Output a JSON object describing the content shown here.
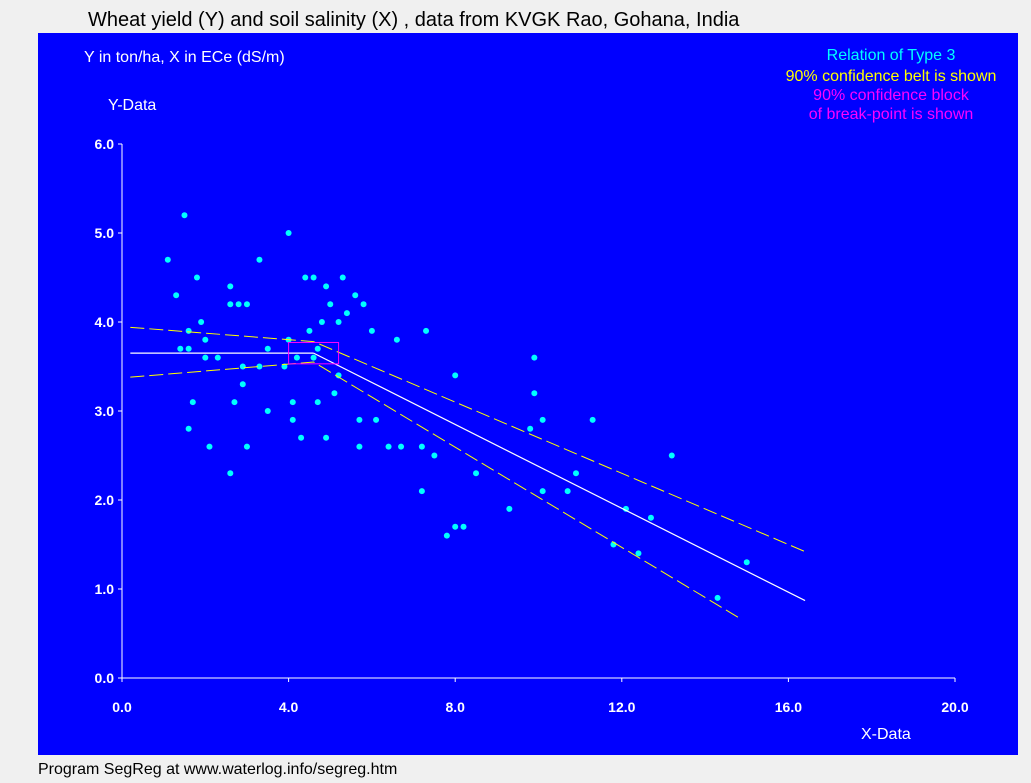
{
  "window": {
    "title": "Wheat yield (Y) and soil salinity (X) , data from KVGK Rao, Gohana, India",
    "footer": "Program SegReg at www.waterlog.info/segreg.htm"
  },
  "colors": {
    "background": "#0000ff",
    "points": "#00ffff",
    "regression_line": "#ffffff",
    "confidence_belt": "#ffff00",
    "breakpoint_block": "#ff00ff",
    "axes": "#ffffff"
  },
  "chart_data": {
    "type": "scatter",
    "title": "Wheat yield (Y) and soil salinity (X) , data from KVGK Rao, Gohana, India",
    "units_note": "Y in ton/ha, X in ECe (dS/m)",
    "xlabel": "X-Data",
    "ylabel": "Y-Data",
    "xlim": [
      0,
      20
    ],
    "ylim": [
      0,
      6
    ],
    "x_ticks": [
      "0.0",
      "4.0",
      "8.0",
      "12.0",
      "16.0",
      "20.0"
    ],
    "y_ticks": [
      "0.0",
      "1.0",
      "2.0",
      "3.0",
      "4.0",
      "5.0",
      "6.0"
    ],
    "x_tick_values": [
      0,
      4,
      8,
      12,
      16,
      20
    ],
    "y_tick_values": [
      0,
      1,
      2,
      3,
      4,
      5,
      6
    ],
    "annotations": [
      "Relation of Type 3",
      "90% confidence belt is shown",
      "90% confidence block",
      "of break-point is shown"
    ],
    "points": [
      [
        1.1,
        4.7
      ],
      [
        1.3,
        4.3
      ],
      [
        1.5,
        5.2
      ],
      [
        1.4,
        3.7
      ],
      [
        1.6,
        3.9
      ],
      [
        1.6,
        3.7
      ],
      [
        1.7,
        3.1
      ],
      [
        1.6,
        2.8
      ],
      [
        1.8,
        4.5
      ],
      [
        1.9,
        4.0
      ],
      [
        2.0,
        3.8
      ],
      [
        2.0,
        3.6
      ],
      [
        2.1,
        2.6
      ],
      [
        2.3,
        3.6
      ],
      [
        2.6,
        4.4
      ],
      [
        2.6,
        4.2
      ],
      [
        2.8,
        4.2
      ],
      [
        2.7,
        3.1
      ],
      [
        2.6,
        2.3
      ],
      [
        2.9,
        3.5
      ],
      [
        2.9,
        3.3
      ],
      [
        3.0,
        4.2
      ],
      [
        3.0,
        2.6
      ],
      [
        3.3,
        3.5
      ],
      [
        3.3,
        4.7
      ],
      [
        3.5,
        3.7
      ],
      [
        3.5,
        3.0
      ],
      [
        3.9,
        3.5
      ],
      [
        4.0,
        5.0
      ],
      [
        4.0,
        3.8
      ],
      [
        4.1,
        3.1
      ],
      [
        4.1,
        2.9
      ],
      [
        4.2,
        3.6
      ],
      [
        4.3,
        2.7
      ],
      [
        4.4,
        4.5
      ],
      [
        4.5,
        3.9
      ],
      [
        4.6,
        4.5
      ],
      [
        4.6,
        3.6
      ],
      [
        4.7,
        3.7
      ],
      [
        4.7,
        3.1
      ],
      [
        4.8,
        4.0
      ],
      [
        4.9,
        4.4
      ],
      [
        4.9,
        2.7
      ],
      [
        5.0,
        4.2
      ],
      [
        5.1,
        3.2
      ],
      [
        5.2,
        3.4
      ],
      [
        5.2,
        4.0
      ],
      [
        5.3,
        4.5
      ],
      [
        5.4,
        4.1
      ],
      [
        5.6,
        4.3
      ],
      [
        5.7,
        2.6
      ],
      [
        5.7,
        2.9
      ],
      [
        5.8,
        4.2
      ],
      [
        6.0,
        3.9
      ],
      [
        6.1,
        2.9
      ],
      [
        6.4,
        2.6
      ],
      [
        6.6,
        3.8
      ],
      [
        6.7,
        2.6
      ],
      [
        7.2,
        2.6
      ],
      [
        7.2,
        2.1
      ],
      [
        7.3,
        3.9
      ],
      [
        7.5,
        2.5
      ],
      [
        7.8,
        1.6
      ],
      [
        8.0,
        3.4
      ],
      [
        8.0,
        1.7
      ],
      [
        8.2,
        1.7
      ],
      [
        8.5,
        2.3
      ],
      [
        9.3,
        1.9
      ],
      [
        9.8,
        2.8
      ],
      [
        9.9,
        3.6
      ],
      [
        9.9,
        3.2
      ],
      [
        10.1,
        2.1
      ],
      [
        10.1,
        2.9
      ],
      [
        10.7,
        2.1
      ],
      [
        10.9,
        2.3
      ],
      [
        11.3,
        2.9
      ],
      [
        11.8,
        1.5
      ],
      [
        12.1,
        1.9
      ],
      [
        12.4,
        1.4
      ],
      [
        12.7,
        1.8
      ],
      [
        13.2,
        2.5
      ],
      [
        14.3,
        0.9
      ],
      [
        15.0,
        1.3
      ]
    ],
    "regression": {
      "breakpoint_x": 4.6,
      "plateau_y": 3.65,
      "end_x": 16.4,
      "end_y": 0.87
    },
    "confidence_belt": {
      "upper": [
        [
          0.2,
          3.94
        ],
        [
          4.6,
          3.78
        ],
        [
          16.4,
          1.42
        ]
      ],
      "lower": [
        [
          0.2,
          3.38
        ],
        [
          4.6,
          3.55
        ],
        [
          14.8,
          0.68
        ]
      ]
    },
    "breakpoint_block": {
      "x": [
        4.0,
        5.2
      ],
      "y": [
        3.53,
        3.77
      ]
    }
  }
}
